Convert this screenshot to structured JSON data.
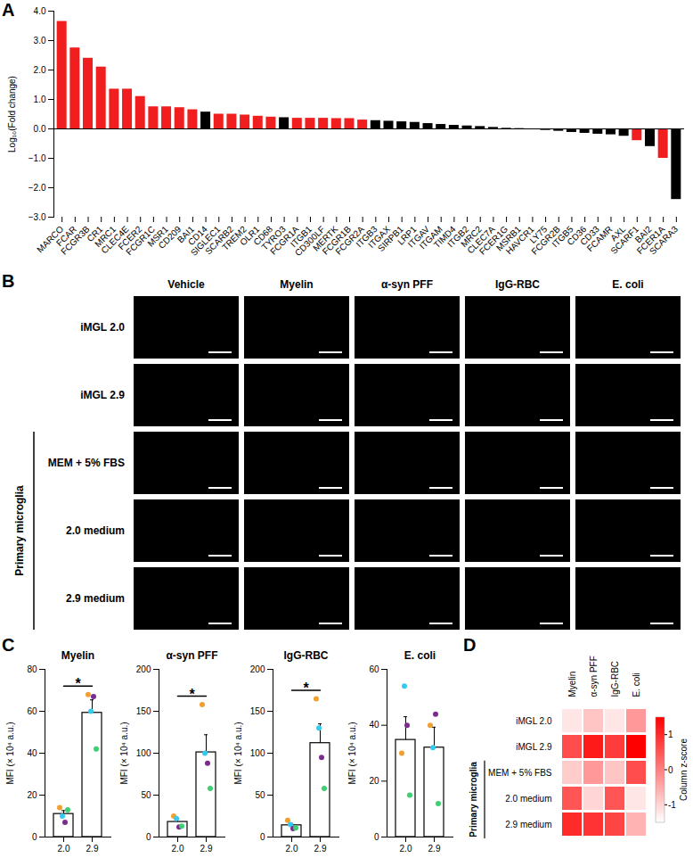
{
  "chart_data": [
    {
      "panel": "A",
      "type": "bar",
      "y_label": "Log₁₀(Fold change)",
      "categories": [
        "MARCO",
        "FCAR",
        "FCGR3B",
        "CR1",
        "MRC1",
        "CLEC4E",
        "FCER2",
        "FCGR1C",
        "MSR1",
        "CD209",
        "BAI1",
        "CD14",
        "SIGLEC1",
        "SCARB2",
        "TREM2",
        "OLR1",
        "CD68",
        "TYRO3",
        "FCGR1A",
        "ITGB1",
        "CD300LF",
        "MERTK",
        "FCGR1B",
        "FCGR2A",
        "ITGB3",
        "ITGAX",
        "SIRPB1",
        "LRP1",
        "ITGAV",
        "ITGAM",
        "TIMD4",
        "ITGB2",
        "MRC2",
        "CLEC7A",
        "FCER1G",
        "MSRB1",
        "HAVCR1",
        "LY75",
        "FCGR2B",
        "ITGB5",
        "CD36",
        "CD33",
        "FCAMR",
        "AXL",
        "SCARF1",
        "BAI2",
        "FCER1A",
        "SCARA3"
      ],
      "values": [
        3.65,
        2.75,
        2.4,
        2.1,
        1.35,
        1.35,
        1.1,
        0.75,
        0.75,
        0.72,
        0.65,
        0.57,
        0.5,
        0.5,
        0.47,
        0.43,
        0.4,
        0.38,
        0.36,
        0.36,
        0.36,
        0.35,
        0.35,
        0.3,
        0.28,
        0.26,
        0.24,
        0.22,
        0.18,
        0.15,
        0.12,
        0.1,
        0.08,
        0.05,
        0.02,
        0.01,
        -0.01,
        -0.05,
        -0.08,
        -0.12,
        -0.15,
        -0.18,
        -0.2,
        -0.25,
        -0.4,
        -0.6,
        -1.0,
        -2.4
      ],
      "colors": [
        "#f01e1e",
        "#f01e1e",
        "#f01e1e",
        "#f01e1e",
        "#f01e1e",
        "#f01e1e",
        "#f01e1e",
        "#f01e1e",
        "#f01e1e",
        "#f01e1e",
        "#f01e1e",
        "#000000",
        "#f01e1e",
        "#f01e1e",
        "#f01e1e",
        "#f01e1e",
        "#f01e1e",
        "#000000",
        "#f01e1e",
        "#f01e1e",
        "#f01e1e",
        "#f01e1e",
        "#f01e1e",
        "#f01e1e",
        "#000000",
        "#000000",
        "#000000",
        "#000000",
        "#000000",
        "#000000",
        "#000000",
        "#000000",
        "#000000",
        "#000000",
        "#000000",
        "#000000",
        "#000000",
        "#000000",
        "#000000",
        "#000000",
        "#000000",
        "#000000",
        "#000000",
        "#000000",
        "#f01e1e",
        "#000000",
        "#f01e1e",
        "#000000"
      ],
      "ylim": [
        -3,
        4
      ],
      "yticks": [
        -3,
        -2,
        -1,
        0,
        1,
        2,
        3,
        4
      ]
    },
    {
      "panel": "B",
      "type": "image_grid",
      "columns": [
        "Vehicle",
        "Myelin",
        "α-syn PFF",
        "IgG-RBC",
        "E. coli"
      ],
      "rows": [
        "iMGL 2.0",
        "iMGL 2.9",
        "MEM + 5% FBS",
        "2.0 medium",
        "2.9 medium"
      ],
      "row_groups": [
        {
          "label": "Primary microglia",
          "rows": [
            "MEM + 5% FBS",
            "2.0 medium",
            "2.9 medium"
          ]
        }
      ]
    },
    {
      "panel": "C",
      "type": "bar",
      "title": "Myelin",
      "y_label": "MFI (× 10⁴ a.u.)",
      "categories": [
        "2.0",
        "2.9"
      ],
      "values": [
        11,
        59.25
      ],
      "errors": [
        1.6,
        6.2
      ],
      "color": "#ffffff",
      "points": [
        {
          "color": "#f0a030",
          "values": [
            14,
            68
          ]
        },
        {
          "color": "#33ccee",
          "values": [
            10,
            60
          ]
        },
        {
          "color": "#7b2d8e",
          "values": [
            7,
            67
          ]
        },
        {
          "color": "#3cd070",
          "values": [
            13,
            42
          ]
        }
      ],
      "significance": "*",
      "ylim": [
        0,
        80
      ],
      "yticks": [
        0,
        20,
        40,
        60,
        80
      ]
    },
    {
      "type": "bar",
      "title": "α-syn PFF",
      "y_label": "MFI (× 10⁴ a.u.)",
      "categories": [
        "2.0",
        "2.9"
      ],
      "values": [
        18,
        101
      ],
      "errors": [
        3.3,
        21
      ],
      "color": "#ffffff",
      "points": [
        {
          "color": "#f0a030",
          "values": [
            25,
            158
          ]
        },
        {
          "color": "#33ccee",
          "values": [
            22,
            100
          ]
        },
        {
          "color": "#7b2d8e",
          "values": [
            12,
            88
          ]
        },
        {
          "color": "#3cd070",
          "values": [
            13,
            58
          ]
        }
      ],
      "significance": "*",
      "ylim": [
        0,
        200
      ],
      "yticks": [
        0,
        50,
        100,
        150,
        200
      ]
    },
    {
      "type": "bar",
      "title": "IgG-RBC",
      "y_label": "MFI (× 10⁴ a.u.)",
      "categories": [
        "2.0",
        "2.9"
      ],
      "values": [
        14,
        112
      ],
      "errors": [
        2.2,
        23
      ],
      "color": "#ffffff",
      "points": [
        {
          "color": "#f0a030",
          "values": [
            20,
            165
          ]
        },
        {
          "color": "#33ccee",
          "values": [
            15,
            130
          ]
        },
        {
          "color": "#7b2d8e",
          "values": [
            10,
            95
          ]
        },
        {
          "color": "#3cd070",
          "values": [
            11,
            58
          ]
        }
      ],
      "significance": "*",
      "ylim": [
        0,
        200
      ],
      "yticks": [
        0,
        50,
        100,
        150,
        200
      ]
    },
    {
      "type": "bar",
      "title": "E. coli",
      "y_label": "MFI (× 10⁴ a.u.)",
      "categories": [
        "2.0",
        "2.9"
      ],
      "values": [
        34.75,
        32
      ],
      "errors": [
        8.3,
        7.3
      ],
      "color": "#ffffff",
      "points": [
        {
          "color": "#f0a030",
          "values": [
            30,
            40
          ]
        },
        {
          "color": "#33ccee",
          "values": [
            54,
            32
          ]
        },
        {
          "color": "#7b2d8e",
          "values": [
            40,
            44
          ]
        },
        {
          "color": "#3cd070",
          "values": [
            15,
            12
          ]
        }
      ],
      "ylim": [
        0,
        60
      ],
      "yticks": [
        0,
        20,
        40,
        60
      ]
    },
    {
      "panel": "D",
      "type": "heatmap",
      "columns": [
        "Myelin",
        "α-syn PFF",
        "IgG-RBC",
        "E. coli"
      ],
      "rows": [
        "iMGL 2.0",
        "iMGL 2.9",
        "MEM + 5% FBS",
        "2.0 medium",
        "2.9 medium"
      ],
      "row_groups": [
        {
          "label": "Primary microglia",
          "rows": [
            "MEM + 5% FBS",
            "2.0 medium",
            "2.9 medium"
          ]
        }
      ],
      "values": [
        [
          -1.2,
          -0.8,
          -1.2,
          -0.3
        ],
        [
          0.6,
          1.2,
          0.8,
          1.5
        ],
        [
          -0.9,
          -0.3,
          -0.8,
          0.6
        ],
        [
          0.5,
          -1.0,
          0.5,
          -1.2
        ],
        [
          1.0,
          0.9,
          0.7,
          -0.6
        ]
      ],
      "colors": [
        "#ffffff",
        "#ff0000"
      ],
      "z_label": "Column z-score",
      "zlim": [
        -1.5,
        1.5
      ],
      "zticks": [
        -1,
        0,
        1
      ]
    }
  ]
}
